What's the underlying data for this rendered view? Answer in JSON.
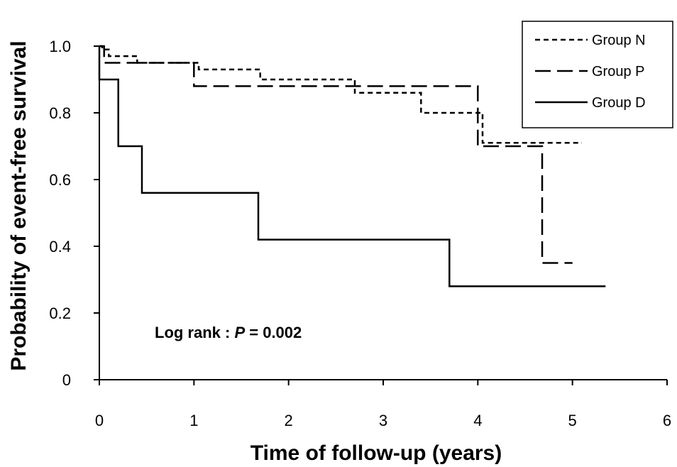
{
  "chart_data": {
    "type": "line",
    "title": "",
    "xlabel": "Time of follow-up (years)",
    "ylabel": "Probability of event-free survival",
    "xlim": [
      0,
      6
    ],
    "ylim": [
      0,
      1
    ],
    "x_ticks": [
      {
        "value": 0,
        "label": "0"
      },
      {
        "value": 1,
        "label": "1"
      },
      {
        "value": 2,
        "label": "2"
      },
      {
        "value": 3,
        "label": "3"
      },
      {
        "value": 4,
        "label": "4"
      },
      {
        "value": 5,
        "label": "5"
      },
      {
        "value": 6,
        "label": "6"
      }
    ],
    "y_ticks": [
      {
        "value": 0,
        "label": "0"
      },
      {
        "value": 0.2,
        "label": "0.2"
      },
      {
        "value": 0.4,
        "label": "0.4"
      },
      {
        "value": 0.6,
        "label": "0.6"
      },
      {
        "value": 0.8,
        "label": "0.8"
      },
      {
        "value": 1.0,
        "label": "1.0"
      }
    ],
    "grid": false,
    "legend_position": "top-right",
    "annotation": {
      "prefix": "Log rank : ",
      "p_symbol": "P",
      "suffix": " = 0.002"
    },
    "series": [
      {
        "name": "Group N",
        "style": "short-dash",
        "points": [
          [
            0,
            1.0
          ],
          [
            0.03,
            1.0
          ],
          [
            0.03,
            0.99
          ],
          [
            0.1,
            0.99
          ],
          [
            0.1,
            0.97
          ],
          [
            0.4,
            0.97
          ],
          [
            0.4,
            0.95
          ],
          [
            1.05,
            0.95
          ],
          [
            1.05,
            0.93
          ],
          [
            1.7,
            0.93
          ],
          [
            1.7,
            0.9
          ],
          [
            2.7,
            0.9
          ],
          [
            2.7,
            0.86
          ],
          [
            3.4,
            0.86
          ],
          [
            3.4,
            0.8
          ],
          [
            4.05,
            0.8
          ],
          [
            4.05,
            0.71
          ],
          [
            5.1,
            0.71
          ]
        ]
      },
      {
        "name": "Group P",
        "style": "long-dash",
        "points": [
          [
            0,
            1.0
          ],
          [
            0.05,
            1.0
          ],
          [
            0.05,
            0.95
          ],
          [
            1.0,
            0.95
          ],
          [
            1.0,
            0.88
          ],
          [
            4.0,
            0.88
          ],
          [
            4.0,
            0.7
          ],
          [
            4.68,
            0.7
          ],
          [
            4.68,
            0.35
          ],
          [
            5.0,
            0.35
          ]
        ]
      },
      {
        "name": "Group D",
        "style": "solid",
        "points": [
          [
            0,
            1.0
          ],
          [
            0,
            0.9
          ],
          [
            0.2,
            0.9
          ],
          [
            0.2,
            0.7
          ],
          [
            0.45,
            0.7
          ],
          [
            0.45,
            0.56
          ],
          [
            1.68,
            0.56
          ],
          [
            1.68,
            0.42
          ],
          [
            3.7,
            0.42
          ],
          [
            3.7,
            0.28
          ],
          [
            5.35,
            0.28
          ]
        ]
      }
    ]
  }
}
